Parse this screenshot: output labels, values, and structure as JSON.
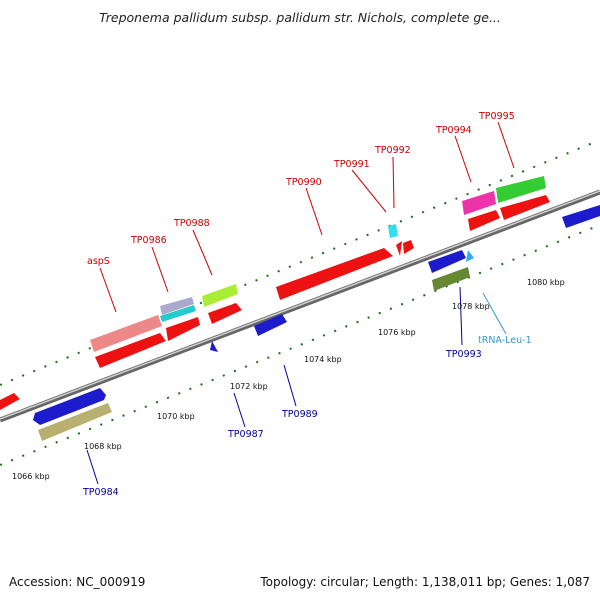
{
  "title": "Treponema pallidum subsp. pallidum str. Nichols, complete ge...",
  "footer": {
    "accession": "Accession: NC_000919",
    "topology": "Topology: circular; Length: 1,138,011 bp; Genes: 1,087"
  },
  "colors": {
    "forward_label": "#cc0000",
    "reverse_label": "#000099",
    "trna_label": "#3399cc",
    "backbone": "#888888",
    "tick": "#1a6e1a"
  },
  "kbp_labels": [
    "1066 kbp",
    "1068 kbp",
    "1070 kbp",
    "1072 kbp",
    "1074 kbp",
    "1076 kbp",
    "1078 kbp",
    "1080 kbp"
  ],
  "forward_labels": [
    "aspS",
    "TP0986",
    "TP0988",
    "TP0990",
    "TP0991",
    "TP0992",
    "TP0994",
    "TP0995"
  ],
  "reverse_labels": [
    "TP0984",
    "TP0987",
    "TP0989",
    "TP0993"
  ],
  "trna_labels": [
    "tRNA-Leu-1"
  ]
}
